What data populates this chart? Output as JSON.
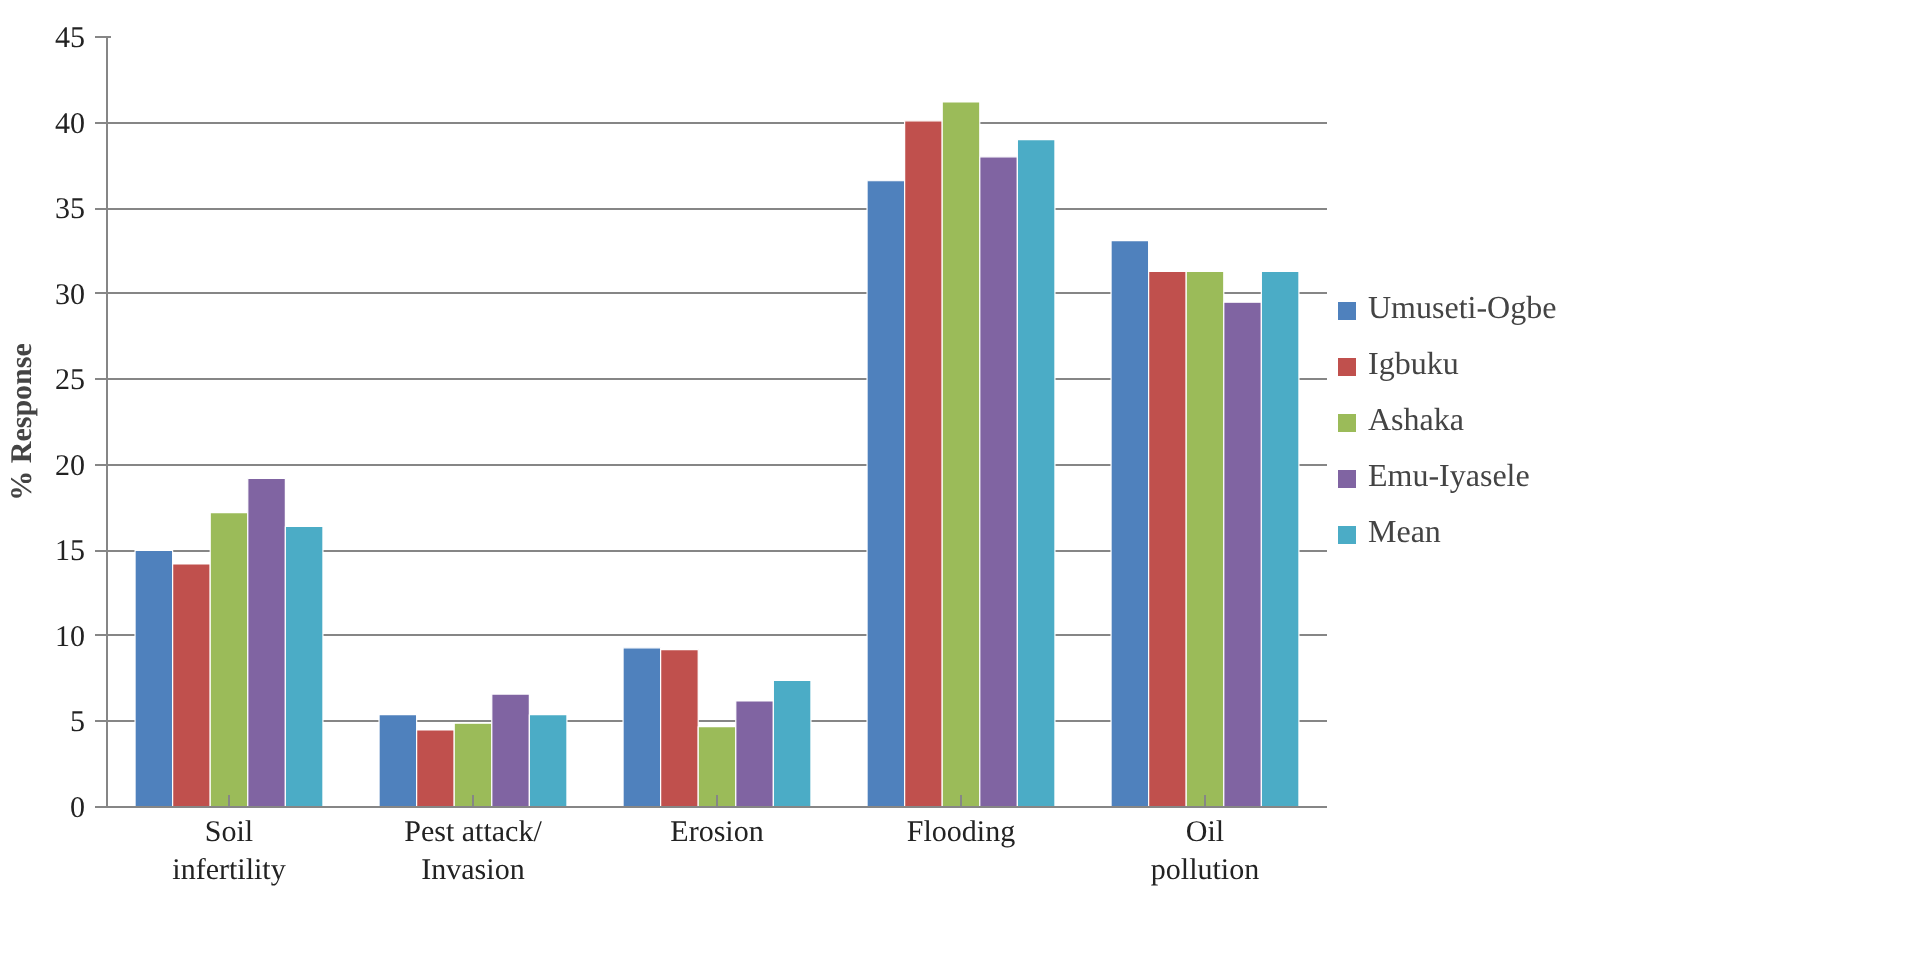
{
  "chart_data": {
    "type": "bar",
    "ylabel": "% Response",
    "categories": [
      "Soil\ninfertility",
      "Pest attack/\nInvasion",
      "Erosion",
      "Flooding",
      "Oil\npollution"
    ],
    "series": [
      {
        "name": "Umuseti-Ogbe",
        "color": "#4f81bd",
        "values": [
          15.0,
          5.4,
          9.3,
          36.6,
          33.1
        ]
      },
      {
        "name": "Igbuku",
        "color": "#c0504d",
        "values": [
          14.2,
          4.5,
          9.2,
          40.1,
          31.3
        ]
      },
      {
        "name": "Ashaka",
        "color": "#9bbb59",
        "values": [
          17.2,
          4.9,
          4.7,
          41.2,
          31.3
        ]
      },
      {
        "name": "Emu-Iyasele",
        "color": "#8064a2",
        "values": [
          19.2,
          6.6,
          6.2,
          38.0,
          29.5
        ]
      },
      {
        "name": "Mean",
        "color": "#4bacc6",
        "values": [
          16.4,
          5.4,
          7.4,
          39.0,
          31.3
        ]
      }
    ],
    "ylim": [
      0,
      45
    ],
    "yticks": [
      0,
      5,
      10,
      15,
      20,
      25,
      30,
      35,
      40,
      45
    ],
    "grid": "y",
    "legend": "right"
  }
}
